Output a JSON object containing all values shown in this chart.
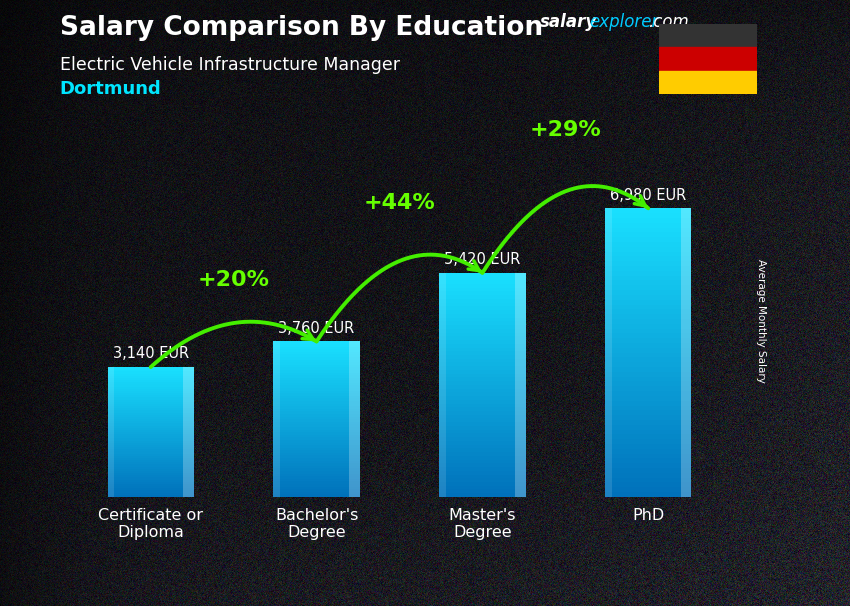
{
  "title_salary": "Salary Comparison By Education",
  "subtitle_job": "Electric Vehicle Infrastructure Manager",
  "subtitle_city": "Dortmund",
  "ylabel": "Average Monthly Salary",
  "categories": [
    "Certificate or\nDiploma",
    "Bachelor's\nDegree",
    "Master's\nDegree",
    "PhD"
  ],
  "values": [
    3140,
    3760,
    5420,
    6980
  ],
  "value_labels": [
    "3,140 EUR",
    "3,760 EUR",
    "5,420 EUR",
    "6,980 EUR"
  ],
  "pct_labels": [
    "+20%",
    "+44%",
    "+29%"
  ],
  "bar_color_top": "#1adeff",
  "bar_color_bottom": "#0070bb",
  "bg_dark": "#111118",
  "title_color": "#ffffff",
  "subtitle_job_color": "#ffffff",
  "subtitle_city_color": "#00e5ff",
  "value_label_color": "#ffffff",
  "pct_color": "#66ff00",
  "arrow_color": "#44ee00",
  "ylim": [
    0,
    8500
  ],
  "bar_width": 0.52,
  "fig_width": 8.5,
  "fig_height": 6.06,
  "site_salary_color": "#ffffff",
  "site_explorer_color": "#00ccff"
}
